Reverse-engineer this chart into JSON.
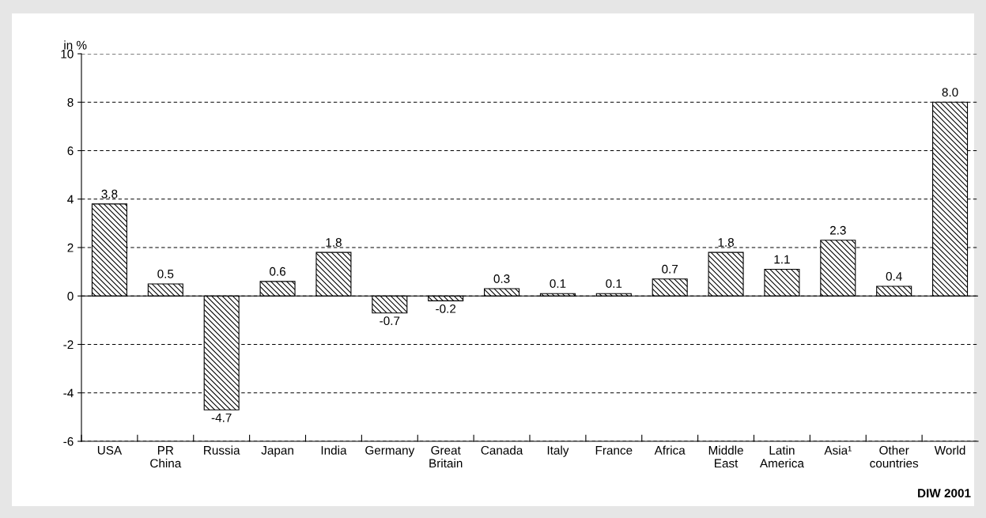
{
  "chart_data": {
    "type": "bar",
    "ylabel": "in %",
    "categories": [
      "USA",
      "PR\nChina",
      "Russia",
      "Japan",
      "India",
      "Germany",
      "Great\nBritain",
      "Canada",
      "Italy",
      "France",
      "Africa",
      "Middle\nEast",
      "Latin\nAmerica",
      "Asia¹",
      "Other\ncountries",
      "World"
    ],
    "values": [
      3.8,
      0.5,
      -4.7,
      0.6,
      1.8,
      -0.7,
      -0.2,
      0.3,
      0.1,
      0.1,
      0.7,
      1.8,
      1.1,
      2.3,
      0.4,
      8.0
    ],
    "color": "#000000",
    "value_labels": [
      "3.8",
      "0.5",
      "-4.7",
      "0.6",
      "1.8",
      "-0.7",
      "-0.2",
      "0.3",
      "0.1",
      "0.1",
      "0.7",
      "1.8",
      "1.1",
      "2.3",
      "0.4",
      "8.0"
    ],
    "data_labels": true,
    "ylim": [
      -6,
      10
    ],
    "yticks": [
      -6,
      -4,
      -2,
      0,
      2,
      4,
      6,
      8,
      10
    ],
    "grid": "y",
    "annotations": [
      "DIW 2001"
    ]
  }
}
